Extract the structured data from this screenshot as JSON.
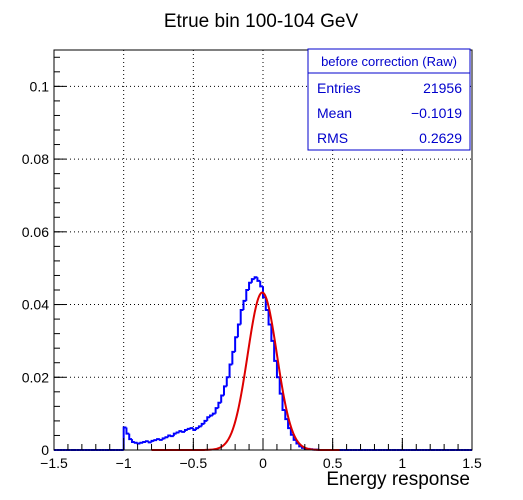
{
  "chart_data": {
    "type": "histogram",
    "title": "Etrue bin 100-104 GeV",
    "xlabel": "Energy response",
    "ylabel": "",
    "xlim": [
      -1.5,
      1.5
    ],
    "ylim": [
      0,
      0.11
    ],
    "xticks": [
      -1.5,
      -1,
      -0.5,
      0,
      0.5,
      1,
      1.5
    ],
    "xtick_labels": [
      "−1.5",
      "−1",
      "−0.5",
      "0",
      "0.5",
      "1",
      "1.5"
    ],
    "yticks": [
      0,
      0.02,
      0.04,
      0.06,
      0.08,
      0.1
    ],
    "ytick_labels": [
      "0",
      "0.02",
      "0.04",
      "0.06",
      "0.08",
      "0.1"
    ],
    "grid": true,
    "stats_box": {
      "name": "before correction (Raw)",
      "rows": [
        {
          "label": "Entries",
          "value": "21956"
        },
        {
          "label": "Mean",
          "value": "−0.1019"
        },
        {
          "label": "RMS",
          "value": "0.2629"
        }
      ]
    },
    "histogram": {
      "color": "#0000ff",
      "bin_width": 0.02,
      "bins_x": [
        -1.5,
        -1.48,
        -1.46,
        -1.44,
        -1.42,
        -1.4,
        -1.38,
        -1.36,
        -1.34,
        -1.32,
        -1.3,
        -1.28,
        -1.26,
        -1.24,
        -1.22,
        -1.2,
        -1.18,
        -1.16,
        -1.14,
        -1.12,
        -1.1,
        -1.08,
        -1.06,
        -1.04,
        -1.02,
        -1.0,
        -0.98,
        -0.96,
        -0.94,
        -0.92,
        -0.9,
        -0.88,
        -0.86,
        -0.84,
        -0.82,
        -0.8,
        -0.78,
        -0.76,
        -0.74,
        -0.72,
        -0.7,
        -0.68,
        -0.66,
        -0.64,
        -0.62,
        -0.6,
        -0.58,
        -0.56,
        -0.54,
        -0.52,
        -0.5,
        -0.48,
        -0.46,
        -0.44,
        -0.42,
        -0.4,
        -0.38,
        -0.36,
        -0.34,
        -0.32,
        -0.3,
        -0.28,
        -0.26,
        -0.24,
        -0.22,
        -0.2,
        -0.18,
        -0.16,
        -0.14,
        -0.12,
        -0.1,
        -0.08,
        -0.06,
        -0.04,
        -0.02,
        0.0,
        0.02,
        0.04,
        0.06,
        0.08,
        0.1,
        0.12,
        0.14,
        0.16,
        0.18,
        0.2,
        0.22,
        0.24,
        0.26,
        0.28,
        0.3,
        0.32,
        0.34,
        0.36,
        0.38,
        0.4,
        0.42,
        0.44,
        0.46,
        0.48,
        0.5,
        0.52,
        0.54,
        0.56,
        0.58,
        0.6,
        0.62,
        0.64,
        0.66,
        0.68,
        0.7,
        0.72,
        0.74,
        0.76,
        0.78,
        0.8,
        0.82,
        0.84,
        0.86,
        0.88,
        0.9,
        0.92,
        0.94,
        0.96,
        0.98,
        1.0,
        1.02,
        1.04,
        1.06,
        1.08,
        1.1,
        1.12,
        1.14,
        1.16,
        1.18,
        1.2,
        1.22,
        1.24,
        1.26,
        1.28,
        1.3,
        1.32,
        1.34,
        1.36,
        1.38,
        1.4,
        1.42,
        1.44,
        1.46,
        1.48
      ],
      "values": [
        0,
        0,
        0,
        0,
        0,
        0,
        0,
        0,
        0,
        0,
        0,
        0,
        0,
        0,
        0,
        0,
        0,
        0,
        0,
        0,
        0,
        0,
        0,
        0,
        0,
        0.0062,
        0.0045,
        0.003,
        0.0022,
        0.002,
        0.0018,
        0.002,
        0.0022,
        0.0024,
        0.0021,
        0.0025,
        0.0027,
        0.003,
        0.0028,
        0.0032,
        0.0035,
        0.004,
        0.0038,
        0.0045,
        0.0048,
        0.0052,
        0.005,
        0.0055,
        0.0058,
        0.006,
        0.0055,
        0.006,
        0.0065,
        0.0072,
        0.008,
        0.009,
        0.0095,
        0.01,
        0.0115,
        0.013,
        0.015,
        0.0175,
        0.02,
        0.0235,
        0.027,
        0.031,
        0.0345,
        0.0385,
        0.041,
        0.044,
        0.046,
        0.047,
        0.0475,
        0.0465,
        0.045,
        0.042,
        0.0385,
        0.0345,
        0.03,
        0.0245,
        0.02,
        0.0155,
        0.011,
        0.0085,
        0.006,
        0.0042,
        0.0028,
        0.0018,
        0.001,
        0.0006,
        0.0004,
        0.0003,
        0.0002,
        0.0001,
        0.0001,
        0,
        0,
        0,
        0,
        0,
        0,
        0,
        0,
        0,
        0,
        0,
        0,
        0,
        0,
        0,
        0,
        0,
        0,
        0,
        0,
        0,
        0,
        0,
        0,
        0,
        0,
        0,
        0,
        0,
        0,
        0,
        0,
        0,
        0,
        0,
        0,
        0,
        0,
        0,
        0,
        0,
        0,
        0,
        0,
        0,
        0,
        0,
        0,
        0,
        0,
        0,
        0,
        0,
        0,
        0,
        0
      ]
    },
    "fit": {
      "type": "gaussian",
      "color": "#dd0000",
      "amplitude": 0.0433,
      "mean": -0.005,
      "sigma": 0.105,
      "x_range": [
        -0.8,
        0.55
      ]
    }
  }
}
